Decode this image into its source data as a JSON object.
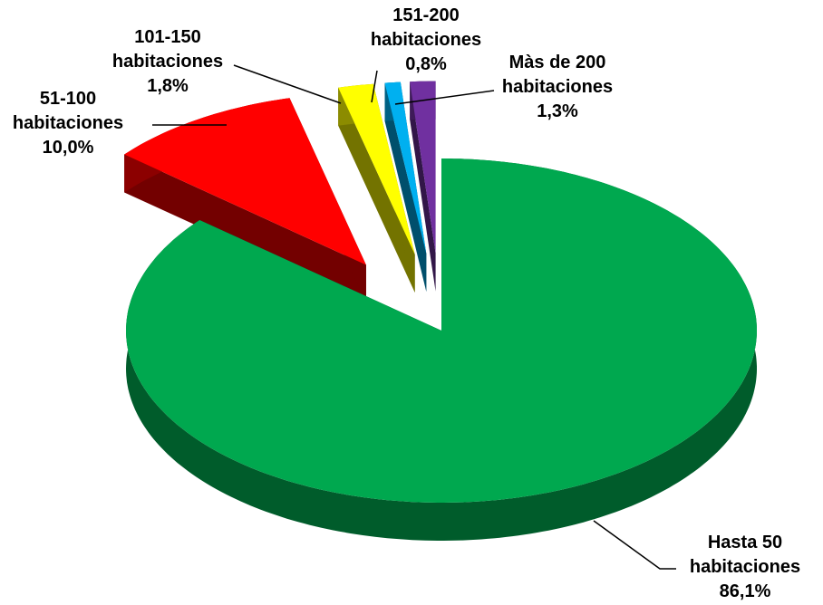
{
  "chart_data": {
    "type": "pie",
    "categories": [
      "Hasta 50 habitaciones",
      "51-100 habitaciones",
      "101-150 habitaciones",
      "151-200 habitaciones",
      "Màs de 200 habitaciones"
    ],
    "values": [
      86.1,
      10.0,
      1.8,
      0.8,
      1.3
    ],
    "value_labels": [
      "86,1%",
      "10,0%",
      "1,8%",
      "0,8%",
      "1,3%"
    ],
    "colors": [
      "#00a84f",
      "#ff0000",
      "#ffff00",
      "#00b0f0",
      "#7030a0"
    ]
  }
}
